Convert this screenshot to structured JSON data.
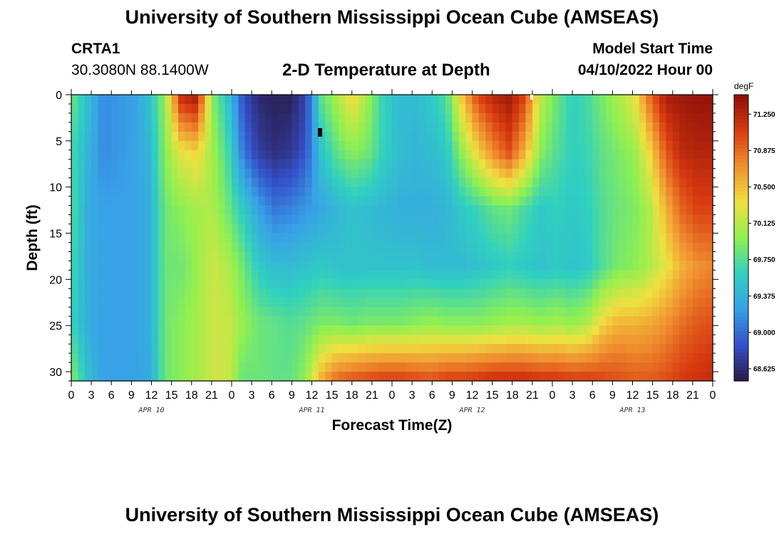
{
  "header": {
    "title": "University of Southern Mississippi Ocean Cube (AMSEAS)",
    "station_id": "CRTA1",
    "station_coords": "30.3080N  88.1400W",
    "plot_title": "2-D Temperature at Depth",
    "model_start_label": "Model Start Time",
    "model_start_value": "04/10/2022 Hour 00"
  },
  "footer": {
    "title": "University of Southern Mississippi Ocean Cube (AMSEAS)"
  },
  "colors": {
    "colormap": [
      "#2a1a4a",
      "#3450c8",
      "#38a0e8",
      "#30d0c0",
      "#90f050",
      "#f0e040",
      "#f09030",
      "#d83a10",
      "#8a0e08"
    ]
  },
  "chart_data": {
    "type": "heatmap",
    "title": "2-D Temperature at Depth",
    "xlabel": "Forecast Time(Z)",
    "ylabel": "Depth (ft)",
    "x_hours_range": [
      0,
      96
    ],
    "ylim": [
      0,
      31
    ],
    "x_tick_labels": [
      "0",
      "3",
      "6",
      "9",
      "12",
      "15",
      "18",
      "21",
      "0",
      "3",
      "6",
      "9",
      "12",
      "15",
      "18",
      "21",
      "0",
      "3",
      "6",
      "9",
      "12",
      "15",
      "18",
      "21",
      "0",
      "3",
      "6",
      "9",
      "12",
      "15",
      "18",
      "21",
      "0"
    ],
    "y_ticks": [
      0,
      5,
      10,
      15,
      20,
      25,
      30
    ],
    "day_labels": [
      "APR 10",
      "APR 11",
      "APR 12",
      "APR 13"
    ],
    "colorbar": {
      "unit": "degF",
      "range": [
        68.5,
        71.45
      ],
      "ticks": [
        "71.250",
        "70.875",
        "70.500",
        "70.125",
        "69.750",
        "69.375",
        "69.000",
        "68.625"
      ]
    },
    "time_hours": [
      0,
      3,
      6,
      9,
      12,
      15,
      18,
      21,
      24,
      27,
      30,
      33,
      36,
      39,
      42,
      45,
      48,
      51,
      54,
      57,
      60,
      63,
      66,
      69,
      72,
      75,
      78,
      81,
      84,
      87,
      90,
      93,
      96
    ],
    "depth_ft": [
      0,
      5,
      10,
      15,
      20,
      25,
      30
    ],
    "values": [
      [
        69.85,
        69.7,
        69.75,
        69.7,
        69.65,
        69.95
      ],
      [
        69.5,
        69.4,
        69.35,
        69.35,
        69.35,
        69.5
      ],
      [
        69.15,
        69.15,
        69.25,
        69.25,
        69.25,
        69.25
      ],
      [
        69.2,
        69.2,
        69.25,
        69.25,
        69.25,
        69.25
      ],
      [
        69.25,
        69.25,
        69.25,
        69.25,
        69.25,
        69.25
      ],
      [
        69.5,
        69.4,
        69.35,
        69.35,
        69.35,
        69.3
      ],
      [
        70.0,
        69.95,
        69.85,
        69.85,
        69.85,
        69.85
      ],
      [
        71.2,
        70.3,
        69.95,
        69.85,
        69.95,
        69.95
      ],
      [
        71.35,
        70.4,
        70.05,
        70.0,
        70.05,
        70.05
      ],
      [
        69.95,
        70.05,
        70.1,
        70.2,
        70.2,
        70.2
      ],
      [
        69.5,
        69.7,
        69.85,
        70.1,
        70.2,
        70.2
      ],
      [
        68.85,
        69.05,
        69.55,
        69.85,
        70.0,
        69.8
      ],
      [
        68.6,
        68.75,
        69.25,
        69.55,
        69.85,
        69.85
      ],
      [
        68.55,
        68.65,
        69.05,
        69.45,
        69.8,
        69.8
      ],
      [
        68.55,
        68.7,
        69.1,
        69.45,
        69.75,
        69.8
      ],
      [
        68.8,
        68.9,
        69.2,
        69.5,
        69.8,
        70.0
      ],
      [
        69.8,
        69.5,
        69.3,
        69.55,
        69.9,
        70.6
      ],
      [
        70.1,
        69.8,
        69.4,
        69.5,
        69.9,
        70.9
      ],
      [
        70.4,
        69.95,
        69.5,
        69.5,
        69.85,
        71.0
      ],
      [
        70.0,
        69.85,
        69.45,
        69.5,
        69.9,
        71.05
      ],
      [
        69.6,
        69.6,
        69.4,
        69.5,
        69.9,
        71.1
      ],
      [
        69.45,
        69.45,
        69.35,
        69.5,
        69.9,
        71.1
      ],
      [
        69.45,
        69.4,
        69.35,
        69.5,
        69.95,
        71.05
      ],
      [
        69.55,
        69.45,
        69.35,
        69.45,
        70.0,
        71.0
      ],
      [
        69.75,
        69.55,
        69.4,
        69.45,
        69.95,
        71.1
      ],
      [
        70.5,
        70.0,
        69.55,
        69.45,
        69.95,
        71.1
      ],
      [
        71.05,
        70.4,
        69.65,
        69.5,
        69.95,
        71.15
      ],
      [
        71.25,
        70.75,
        69.8,
        69.55,
        70.0,
        71.2
      ],
      [
        71.35,
        71.0,
        69.85,
        69.6,
        70.05,
        71.2
      ],
      [
        71.05,
        70.55,
        69.7,
        69.55,
        70.05,
        71.2
      ],
      [
        70.15,
        69.95,
        69.55,
        69.5,
        70.0,
        71.15
      ],
      [
        69.85,
        69.75,
        69.6,
        69.55,
        70.05,
        71.15
      ],
      [
        69.6,
        69.6,
        69.55,
        69.5,
        70.0,
        71.1
      ],
      [
        69.7,
        69.65,
        69.6,
        69.55,
        70.1,
        71.1
      ],
      [
        69.9,
        69.8,
        69.75,
        69.75,
        70.4,
        71.05
      ],
      [
        70.1,
        69.9,
        69.85,
        69.9,
        70.55,
        71.0
      ],
      [
        70.3,
        70.0,
        69.9,
        69.95,
        70.55,
        70.95
      ],
      [
        70.9,
        70.4,
        70.1,
        70.1,
        70.6,
        70.95
      ],
      [
        71.3,
        70.95,
        70.55,
        70.3,
        70.7,
        71.0
      ],
      [
        71.35,
        71.2,
        70.9,
        70.55,
        70.85,
        71.1
      ],
      [
        71.4,
        71.25,
        71.05,
        70.7,
        70.95,
        71.15
      ],
      [
        71.4,
        71.25,
        71.05,
        70.75,
        71.0,
        71.2
      ]
    ]
  }
}
